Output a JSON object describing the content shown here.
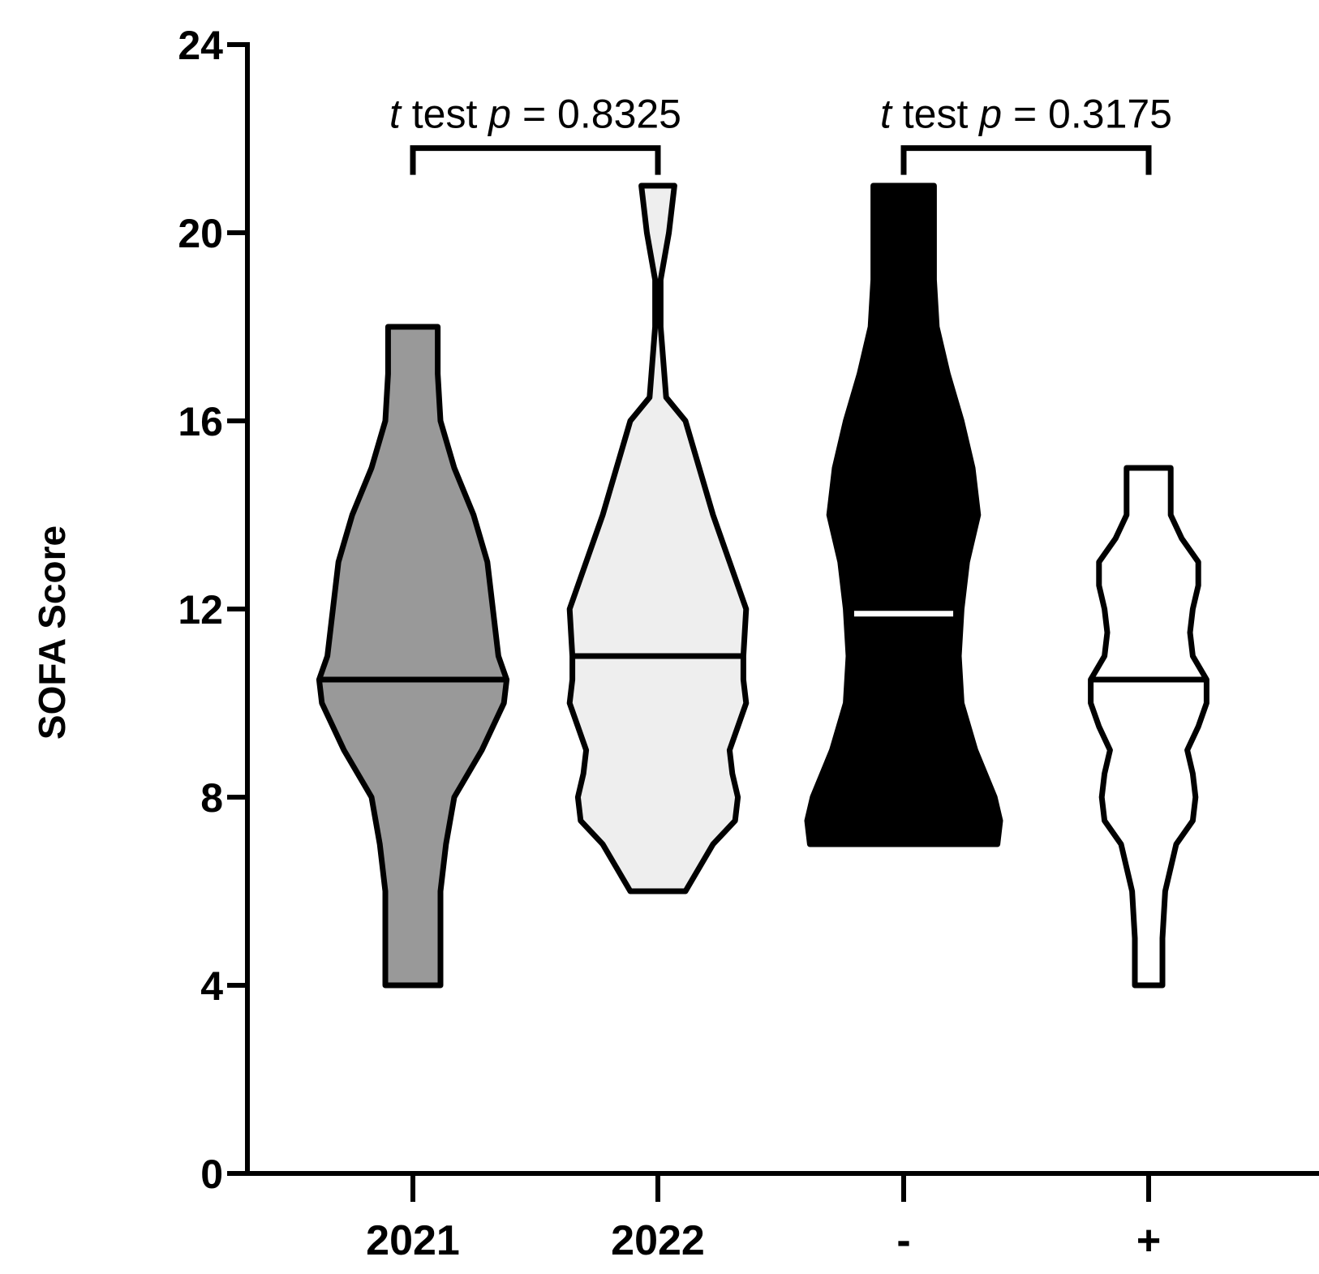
{
  "chart_data": {
    "type": "violin",
    "ylabel": "SOFA Score",
    "ylim": [
      0,
      24
    ],
    "yticks": [
      "0",
      "4",
      "8",
      "12",
      "16",
      "20",
      "24"
    ],
    "grid": false,
    "categories": [
      "2021",
      "2022",
      "-",
      "+"
    ],
    "series": [
      {
        "category": "2021",
        "fill": "#999999",
        "median_line_color": "#000000",
        "min": 4,
        "max": 18,
        "median": 10.5,
        "profile": [
          [
            4,
            1
          ],
          [
            5,
            1
          ],
          [
            6,
            1
          ],
          [
            7,
            1.2
          ],
          [
            8,
            1.5
          ],
          [
            9,
            2.5
          ],
          [
            10,
            3.3
          ],
          [
            10.5,
            3.4
          ],
          [
            11,
            3.1
          ],
          [
            12,
            2.9
          ],
          [
            13,
            2.7
          ],
          [
            14,
            2.2
          ],
          [
            15,
            1.5
          ],
          [
            16,
            1
          ],
          [
            17,
            0.9
          ],
          [
            18,
            0.9
          ]
        ]
      },
      {
        "category": "2022",
        "fill": "#eeeeee",
        "median_line_color": "#000000",
        "min": 6,
        "max": 21,
        "median": 11,
        "profile": [
          [
            6,
            1
          ],
          [
            7,
            2
          ],
          [
            7.5,
            2.8
          ],
          [
            8,
            2.9
          ],
          [
            8.5,
            2.7
          ],
          [
            9,
            2.6
          ],
          [
            10,
            3.2
          ],
          [
            10.5,
            3.1
          ],
          [
            11,
            3.1
          ],
          [
            12,
            3.2
          ],
          [
            12.5,
            2.9
          ],
          [
            13,
            2.6
          ],
          [
            14,
            2
          ],
          [
            15,
            1.5
          ],
          [
            16,
            1
          ],
          [
            16.5,
            0.3
          ],
          [
            18,
            0.1
          ],
          [
            19,
            0.1
          ],
          [
            20,
            0.4
          ],
          [
            21,
            0.6
          ]
        ]
      },
      {
        "category": "-",
        "fill": "#000000",
        "median_line_color": "#ffffff",
        "min": 7,
        "max": 21,
        "median": 11.9,
        "profile": [
          [
            7,
            3.4
          ],
          [
            7.5,
            3.5
          ],
          [
            8,
            3.3
          ],
          [
            9,
            2.6
          ],
          [
            10,
            2.1
          ],
          [
            11,
            2
          ],
          [
            12,
            2.1
          ],
          [
            13,
            2.3
          ],
          [
            14,
            2.7
          ],
          [
            15,
            2.5
          ],
          [
            16,
            2.1
          ],
          [
            17,
            1.6
          ],
          [
            18,
            1.2
          ],
          [
            19,
            1.1
          ],
          [
            20,
            1.1
          ],
          [
            21,
            1.1
          ]
        ]
      },
      {
        "category": "+",
        "fill": "#ffffff",
        "median_line_color": "#000000",
        "min": 4,
        "max": 15,
        "median": 10.5,
        "profile": [
          [
            4,
            0.5
          ],
          [
            5,
            0.5
          ],
          [
            6,
            0.6
          ],
          [
            7,
            1
          ],
          [
            7.5,
            1.6
          ],
          [
            8,
            1.7
          ],
          [
            8.5,
            1.6
          ],
          [
            9,
            1.4
          ],
          [
            9.5,
            1.8
          ],
          [
            10,
            2.1
          ],
          [
            10.5,
            2.1
          ],
          [
            11,
            1.6
          ],
          [
            11.5,
            1.5
          ],
          [
            12,
            1.6
          ],
          [
            12.5,
            1.8
          ],
          [
            13,
            1.8
          ],
          [
            13.5,
            1.2
          ],
          [
            14,
            0.8
          ],
          [
            15,
            0.8
          ]
        ]
      }
    ],
    "annotations": [
      {
        "from": "2021",
        "to": "2022",
        "y": 21.8,
        "prefix": "t",
        "mid": " test ",
        "pvar": "p",
        "text": " = 0.8325"
      },
      {
        "from": "-",
        "to": "+",
        "y": 21.8,
        "prefix": "t",
        "mid": " test ",
        "pvar": "p",
        "text": " = 0.3175"
      }
    ]
  }
}
